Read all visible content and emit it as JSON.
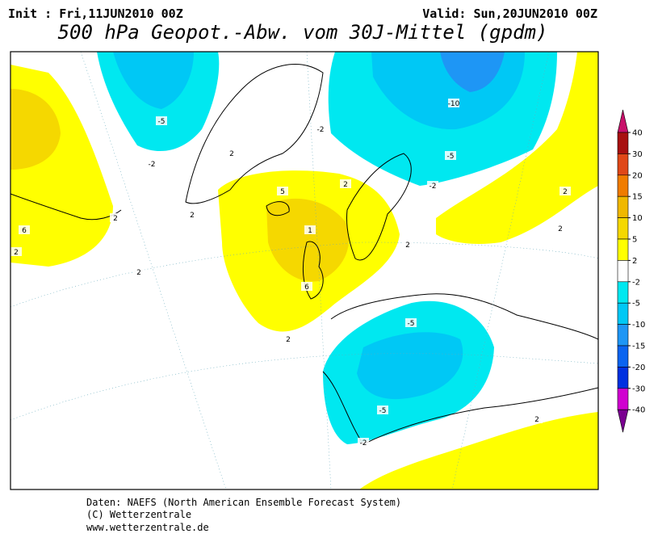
{
  "header": {
    "init": "Init : Fri,11JUN2010 00Z",
    "valid": "Valid: Sun,20JUN2010 00Z",
    "title": "500 hPa Geopot.-Abw. vom 30J-Mittel (gpdm)"
  },
  "colorbar": {
    "labels": [
      40,
      30,
      20,
      15,
      10,
      5,
      2,
      -2,
      -5,
      -10,
      -15,
      -20,
      -30,
      -40
    ],
    "colors": [
      "#c8106a",
      "#a81010",
      "#e04818",
      "#f07c00",
      "#f0b800",
      "#f5d800",
      "#ffff00",
      "#ffffff",
      "#00e8f0",
      "#00c8f5",
      "#1e96f5",
      "#0a64f0",
      "#0030e0",
      "#d000d0",
      "#7a0090"
    ]
  },
  "contour_labels": [
    "-5",
    "-2",
    "2",
    "-2",
    "-10",
    "-5",
    "-2",
    "2",
    "2",
    "6",
    "2",
    "2",
    "5",
    "1",
    "6",
    "2",
    "2",
    "2",
    "-5",
    "-5",
    "-2",
    "2",
    "2",
    "2"
  ],
  "footer": {
    "lines": [
      "Daten: NAEFS (North American Ensemble Forecast System)",
      "(C) Wetterzentrale",
      "www.wetterzentrale.de"
    ]
  }
}
